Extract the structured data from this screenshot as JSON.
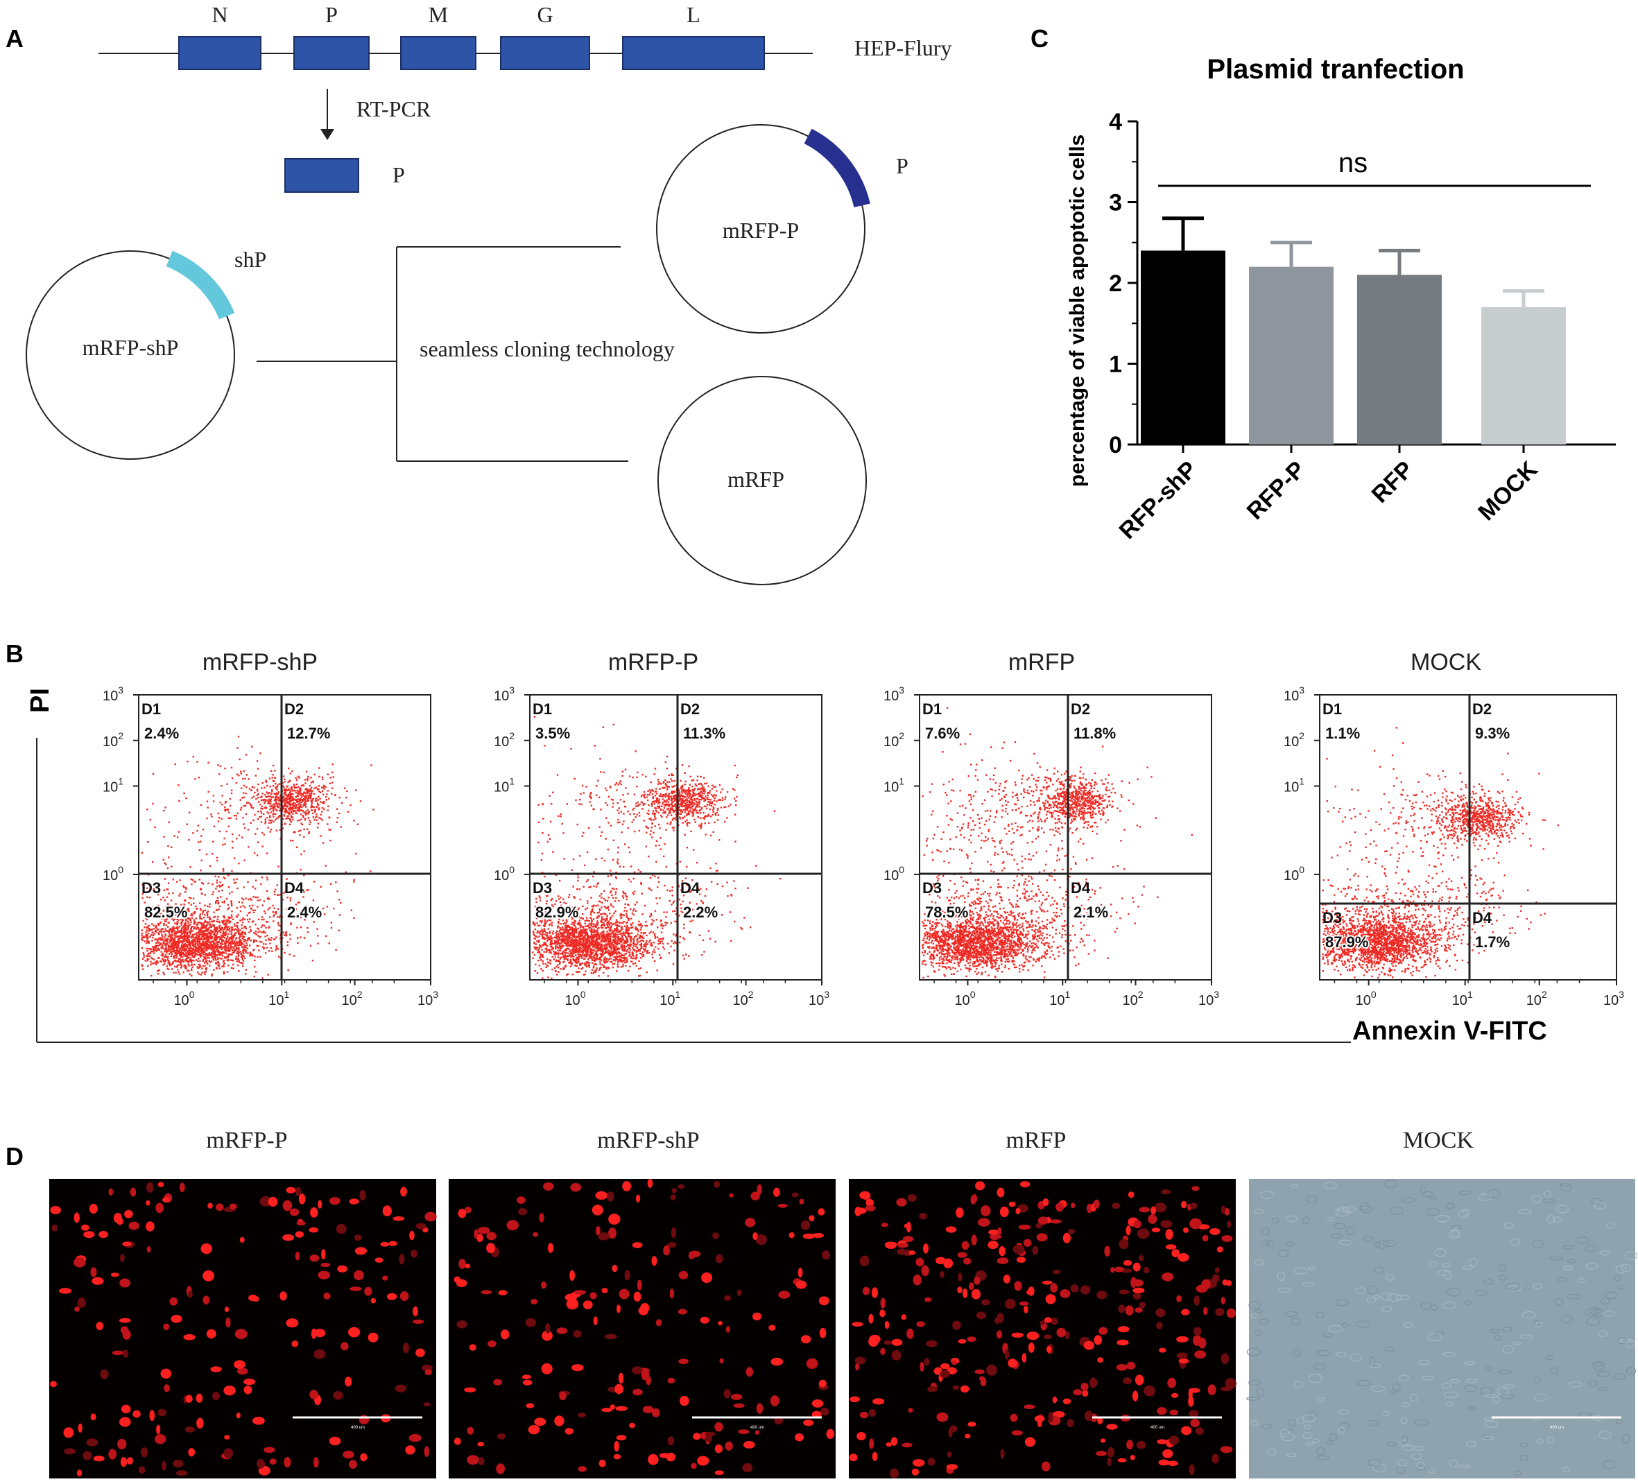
{
  "panels": {
    "A": {
      "letter": "A",
      "genome_genes": [
        "N",
        "P",
        "M",
        "G",
        "L"
      ],
      "genome_name": "HEP-Flury",
      "arrow_label": "RT-PCR",
      "fragment_label": "P",
      "shp_label": "shP",
      "plasmid_shp": "mRFP-shP",
      "plasmid_p": "mRFP-P",
      "plasmid_p_insert": "P",
      "plasmid_rfp": "mRFP",
      "method": "seamless cloning technology",
      "colors": {
        "gene": "#2E54A8",
        "shp_insert": "#63C8DC",
        "p_insert": "#27308E"
      }
    },
    "B": {
      "letter": "B",
      "y_label": "PI",
      "x_label": "Annexin V-FITC",
      "quadrant_names": [
        "D1",
        "D2",
        "D3",
        "D4"
      ],
      "tick_labels": [
        "10",
        "10",
        "10",
        "10"
      ],
      "tick_exponents": [
        "0",
        "1",
        "2",
        "3"
      ],
      "dot_color": "#EE2A24",
      "plots": [
        {
          "title": "mRFP-shP",
          "d1": "2.4%",
          "d2": "12.7%",
          "d3": "82.5%",
          "d4": "2.4%"
        },
        {
          "title": "mRFP-P",
          "d1": "3.5%",
          "d2": "11.3%",
          "d3": "82.9%",
          "d4": "2.2%"
        },
        {
          "title": "mRFP",
          "d1": "7.6%",
          "d2": "11.8%",
          "d3": "78.5%",
          "d4": "2.1%"
        },
        {
          "title": "MOCK",
          "d1": "1.1%",
          "d2": "9.3%",
          "d3": "87.9%",
          "d4": "1.7%"
        }
      ]
    },
    "D": {
      "letter": "D",
      "images": [
        {
          "title": "mRFP-P",
          "scale": "400 um"
        },
        {
          "title": "mRFP-shP",
          "scale": "400 um"
        },
        {
          "title": "mRFP",
          "scale": "400 um"
        },
        {
          "title": "MOCK",
          "scale": "400 um"
        }
      ]
    }
  },
  "chart_data": {
    "panel": "C",
    "type": "bar",
    "title": "Plasmid tranfection",
    "ylabel": "percentage of viable apoptotic cells",
    "xlabel": "",
    "categories": [
      "RFP-shP",
      "RFP-P",
      "RFP",
      "MOCK"
    ],
    "values": [
      2.4,
      2.2,
      2.1,
      1.7
    ],
    "errors": [
      0.4,
      0.3,
      0.3,
      0.2
    ],
    "bar_colors": [
      "#000000",
      "#8F959C",
      "#757B7E",
      "#C7CDCF"
    ],
    "ylim": [
      0,
      4
    ],
    "yticks": [
      "0",
      "1",
      "2",
      "3",
      "4"
    ],
    "annotation": "ns",
    "grid": false
  }
}
